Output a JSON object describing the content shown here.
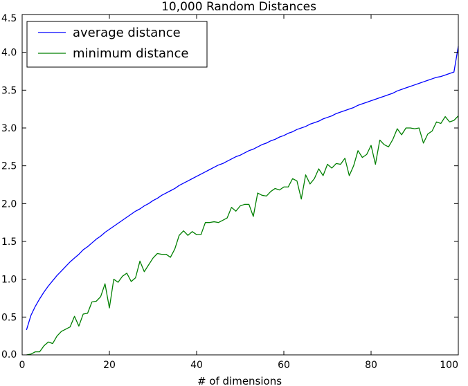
{
  "chart_data": {
    "type": "line",
    "title": "10,000 Random Distances",
    "xlabel": "# of dimensions",
    "ylabel": "",
    "xlim": [
      0,
      100
    ],
    "ylim": [
      0.0,
      4.5
    ],
    "x_ticks": [
      "0",
      "20",
      "40",
      "60",
      "80",
      "100"
    ],
    "y_ticks": [
      "0.0",
      "0.5",
      "1.0",
      "1.5",
      "2.0",
      "2.5",
      "3.0",
      "3.5",
      "4.0",
      "4.5"
    ],
    "grid": false,
    "legend_position": "top-left",
    "x": [
      1,
      2,
      3,
      4,
      5,
      6,
      7,
      8,
      9,
      10,
      11,
      12,
      13,
      14,
      15,
      16,
      17,
      18,
      19,
      20,
      21,
      22,
      23,
      24,
      25,
      26,
      27,
      28,
      29,
      30,
      31,
      32,
      33,
      34,
      35,
      36,
      37,
      38,
      39,
      40,
      41,
      42,
      43,
      44,
      45,
      46,
      47,
      48,
      49,
      50,
      51,
      52,
      53,
      54,
      55,
      56,
      57,
      58,
      59,
      60,
      61,
      62,
      63,
      64,
      65,
      66,
      67,
      68,
      69,
      70,
      71,
      72,
      73,
      74,
      75,
      76,
      77,
      78,
      79,
      80,
      81,
      82,
      83,
      84,
      85,
      86,
      87,
      88,
      89,
      90,
      91,
      92,
      93,
      94,
      95,
      96,
      97,
      98,
      99,
      100
    ],
    "series": [
      {
        "name": "average distance",
        "color": "#0000ff",
        "values": [
          0.33,
          0.52,
          0.64,
          0.74,
          0.83,
          0.91,
          0.98,
          1.05,
          1.11,
          1.17,
          1.23,
          1.28,
          1.33,
          1.39,
          1.43,
          1.48,
          1.53,
          1.57,
          1.62,
          1.66,
          1.7,
          1.74,
          1.78,
          1.82,
          1.86,
          1.9,
          1.93,
          1.97,
          2.0,
          2.04,
          2.07,
          2.11,
          2.14,
          2.17,
          2.2,
          2.24,
          2.27,
          2.3,
          2.33,
          2.36,
          2.39,
          2.42,
          2.45,
          2.48,
          2.51,
          2.53,
          2.56,
          2.59,
          2.62,
          2.64,
          2.67,
          2.7,
          2.72,
          2.75,
          2.78,
          2.8,
          2.83,
          2.85,
          2.88,
          2.9,
          2.93,
          2.95,
          2.98,
          3.0,
          3.02,
          3.05,
          3.07,
          3.09,
          3.12,
          3.14,
          3.16,
          3.19,
          3.21,
          3.23,
          3.25,
          3.27,
          3.3,
          3.32,
          3.34,
          3.36,
          3.38,
          3.4,
          3.42,
          3.44,
          3.46,
          3.49,
          3.51,
          3.53,
          3.55,
          3.57,
          3.59,
          3.61,
          3.63,
          3.65,
          3.67,
          3.68,
          3.7,
          3.72,
          3.74,
          4.08
        ]
      },
      {
        "name": "minimum distance",
        "color": "#007f00",
        "values": [
          0.0,
          0.01,
          0.04,
          0.04,
          0.12,
          0.17,
          0.15,
          0.25,
          0.31,
          0.34,
          0.37,
          0.51,
          0.38,
          0.54,
          0.55,
          0.7,
          0.71,
          0.77,
          0.94,
          0.62,
          1.0,
          0.96,
          1.04,
          1.08,
          0.97,
          1.02,
          1.24,
          1.1,
          1.19,
          1.28,
          1.34,
          1.33,
          1.33,
          1.29,
          1.4,
          1.58,
          1.64,
          1.58,
          1.63,
          1.59,
          1.59,
          1.75,
          1.75,
          1.76,
          1.75,
          1.78,
          1.81,
          1.95,
          1.9,
          1.97,
          1.99,
          1.99,
          1.83,
          2.14,
          2.11,
          2.1,
          2.16,
          2.2,
          2.18,
          2.22,
          2.22,
          2.33,
          2.3,
          2.06,
          2.38,
          2.26,
          2.33,
          2.46,
          2.37,
          2.52,
          2.47,
          2.53,
          2.52,
          2.6,
          2.37,
          2.5,
          2.7,
          2.61,
          2.65,
          2.77,
          2.52,
          2.84,
          2.78,
          2.75,
          2.85,
          2.99,
          2.91,
          3.0,
          3.0,
          2.99,
          3.0,
          2.8,
          2.92,
          2.96,
          3.08,
          3.06,
          3.15,
          3.08,
          3.1,
          3.16
        ]
      }
    ]
  }
}
